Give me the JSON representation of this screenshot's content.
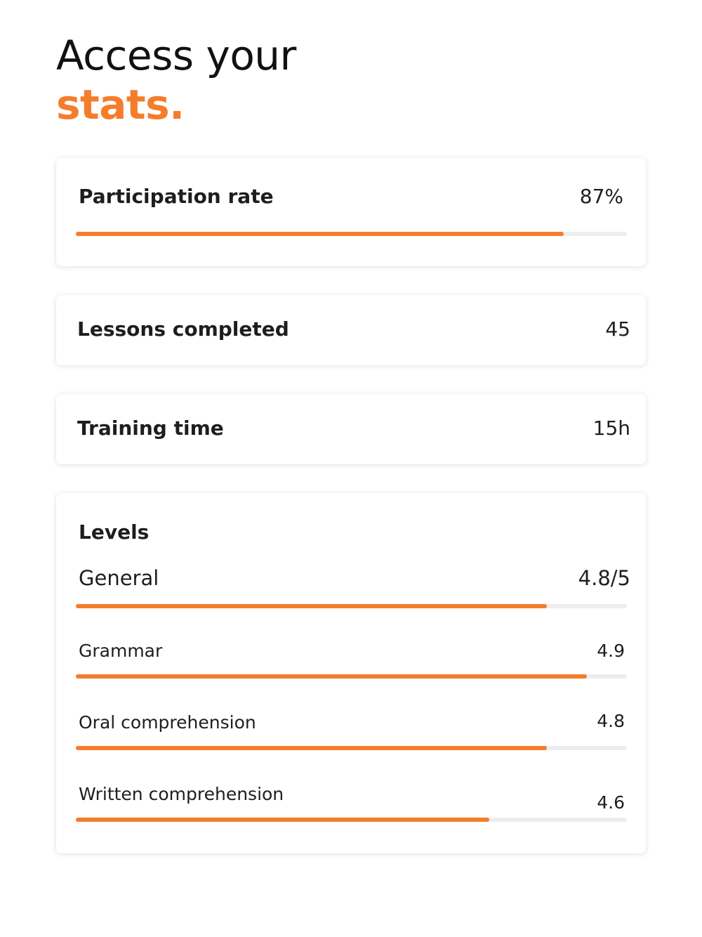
{
  "header": {
    "line1": "Access your",
    "line2": "stats."
  },
  "participation": {
    "label": "Participation rate",
    "value": "87%",
    "progress": 0.885
  },
  "lessons": {
    "label": "Lessons completed",
    "value": "45"
  },
  "training": {
    "label": "Training time",
    "value": "15h"
  },
  "levels": {
    "title": "Levels",
    "general": {
      "label": "General",
      "value": "4.8/5",
      "progress": 0.855
    },
    "items": [
      {
        "label": "Grammar",
        "value": "4.9",
        "progress": 0.927
      },
      {
        "label": "Oral comprehension",
        "value": "4.8",
        "progress": 0.855
      },
      {
        "label": "Written comprehension",
        "value": "4.6",
        "progress": 0.75
      }
    ]
  },
  "colors": {
    "accent": "#f47d2b",
    "track": "#ededed",
    "text": "#1e1e1e"
  }
}
